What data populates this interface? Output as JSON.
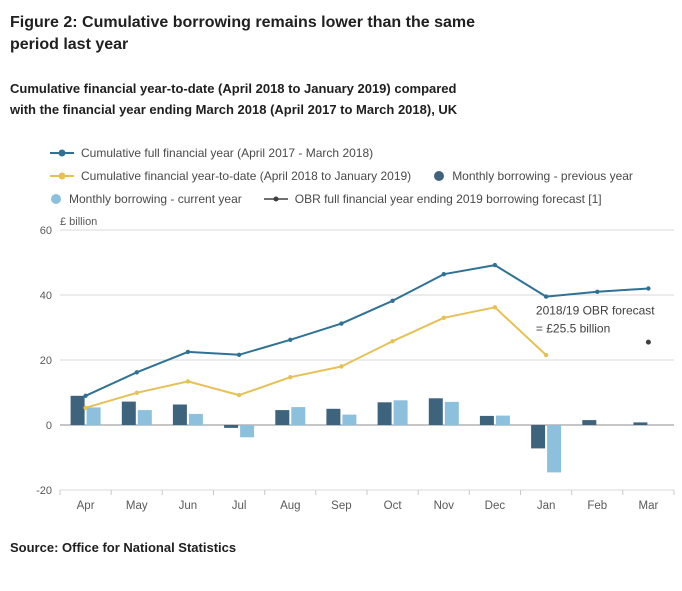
{
  "figure": {
    "title": "Figure 2: Cumulative borrowing remains lower than the same period last year",
    "subtitle": "Cumulative financial year-to-date (April 2018 to January 2019) compared with the financial year ending March 2018 (April 2017 to March 2018), UK",
    "source": "Source: Office for National Statistics"
  },
  "colors": {
    "line_prev": "#2f7296",
    "line_cur": "#e6c155",
    "bar_prev": "#3e647d",
    "bar_cur": "#8cc0dd",
    "forecast": "#404040",
    "gridline": "#d9d9d9",
    "zero_line": "#8c8c8c",
    "axis_text": "#595959",
    "annotation_text": "#404040"
  },
  "legend": {
    "items": [
      {
        "row": 1,
        "marker": "line",
        "color": "#2f7296",
        "label": "Cumulative full financial year (April 2017 - March 2018)"
      },
      {
        "row": 2,
        "marker": "line",
        "color": "#e6c155",
        "label": "Cumulative financial year-to-date (April 2018 to January 2019)"
      },
      {
        "row": 2,
        "marker": "dot",
        "color": "#3e647d",
        "label": "Monthly borrowing - previous year"
      },
      {
        "row": 3,
        "marker": "dot",
        "color": "#8cc0dd",
        "label": "Monthly borrowing - current year"
      },
      {
        "row": 3,
        "marker": "point",
        "color": "#404040",
        "label": "OBR full financial year ending 2019 borrowing forecast [1]"
      }
    ]
  },
  "chart_data": {
    "type": "mixed",
    "title": "Figure 2: Cumulative borrowing remains lower than the same period last year",
    "xlabel": "",
    "ylabel": "£ billion",
    "ylim": [
      -20,
      60
    ],
    "yticks": [
      60,
      40,
      20,
      0,
      -20
    ],
    "categories": [
      "Apr",
      "May",
      "Jun",
      "Jul",
      "Aug",
      "Sep",
      "Oct",
      "Nov",
      "Dec",
      "Jan",
      "Feb",
      "Mar"
    ],
    "series": [
      {
        "name": "Cumulative full financial year (April 2017 - March 2018)",
        "type": "line",
        "color": "#2f7296",
        "data_name": "cumulative-previous-year-line",
        "values": [
          9.0,
          16.2,
          22.5,
          21.6,
          26.2,
          31.2,
          38.2,
          46.4,
          49.2,
          39.5,
          41.0,
          42.0
        ]
      },
      {
        "name": "Cumulative financial year-to-date (April 2018 to January 2019)",
        "type": "line",
        "color": "#e6c155",
        "data_name": "cumulative-ytd-line",
        "values": [
          5.3,
          9.9,
          13.4,
          9.2,
          14.7,
          18.0,
          25.8,
          33.0,
          36.2,
          21.5,
          null,
          null
        ]
      },
      {
        "name": "Monthly borrowing - previous year",
        "type": "bar",
        "color": "#3e647d",
        "data_name": "previous-year-bars",
        "values": [
          9.0,
          7.2,
          6.3,
          -0.9,
          4.6,
          5.0,
          7.0,
          8.2,
          2.8,
          -7.2,
          1.5,
          0.8
        ]
      },
      {
        "name": "Monthly borrowing - current year",
        "type": "bar",
        "color": "#8cc0dd",
        "data_name": "current-year-bars",
        "values": [
          5.4,
          4.6,
          3.4,
          -3.8,
          5.5,
          3.2,
          7.6,
          7.1,
          2.9,
          -14.6,
          null,
          null
        ]
      },
      {
        "name": "OBR full financial year ending 2019 borrowing forecast [1]",
        "type": "point",
        "color": "#404040",
        "data_name": "obr-forecast-point",
        "values": [
          null,
          null,
          null,
          null,
          null,
          null,
          null,
          null,
          null,
          null,
          null,
          25.5
        ]
      }
    ],
    "annotation": {
      "lines": [
        "2018/19 OBR forecast",
        "= £25.5 billion"
      ],
      "x_index": 9.3,
      "y_value": 34
    }
  }
}
